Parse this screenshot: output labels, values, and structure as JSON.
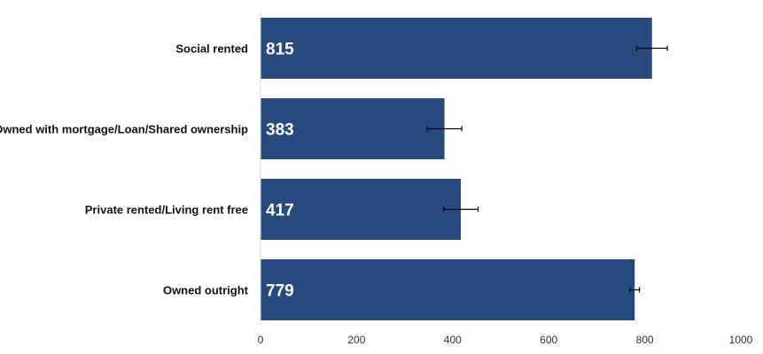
{
  "chart_data": {
    "type": "bar",
    "orientation": "horizontal",
    "categories": [
      "Social rented",
      "Owned with mortgage/Loan/Shared ownership",
      "Private rented/Living rent free",
      "Owned outright"
    ],
    "values": [
      815,
      383,
      417,
      779
    ],
    "data_labels": [
      "815",
      "383",
      "417",
      "779"
    ],
    "error_bars": [
      {
        "low": 783,
        "high": 847
      },
      {
        "low": 347,
        "high": 419
      },
      {
        "low": 381,
        "high": 453
      },
      {
        "low": 769,
        "high": 789
      }
    ],
    "xlim": [
      0,
      1000
    ],
    "x_ticks": [
      0,
      200,
      400,
      600,
      800,
      1000
    ],
    "x_tick_labels": [
      "0",
      "200",
      "400",
      "600",
      "800",
      "1000"
    ],
    "title": "",
    "xlabel": "",
    "ylabel": "",
    "grid": false,
    "legend": "none",
    "colors": {
      "bar": "#264a7d",
      "error_bar": "#000000",
      "data_label": "#ffffff",
      "axis": "#d9d9d9"
    }
  }
}
